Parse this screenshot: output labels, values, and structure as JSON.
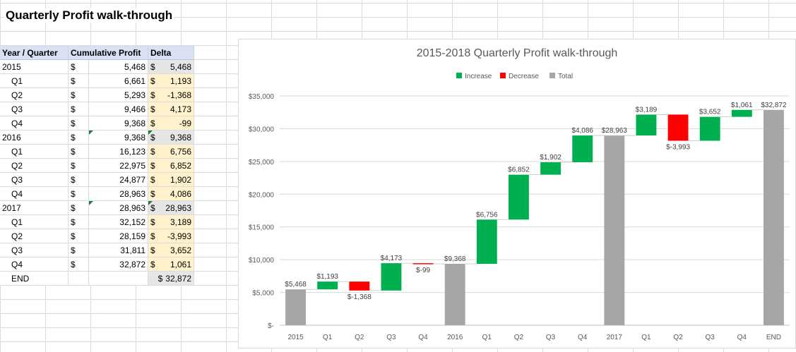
{
  "sheet": {
    "title": "Quarterly Profit walk-through",
    "headers": [
      "Year / Quarter",
      "Cumulative Profit",
      "Delta"
    ],
    "currency_symbol": "$",
    "rows": [
      {
        "label": "2015",
        "kind": "total",
        "cumulative": "5,468",
        "delta": "5,468"
      },
      {
        "label": "Q1",
        "kind": "step",
        "cumulative": "6,661",
        "delta": "1,193"
      },
      {
        "label": "Q2",
        "kind": "step",
        "cumulative": "5,293",
        "delta": "-1,368"
      },
      {
        "label": "Q3",
        "kind": "step",
        "cumulative": "9,466",
        "delta": "4,173"
      },
      {
        "label": "Q4",
        "kind": "step",
        "cumulative": "9,368",
        "delta": "-99"
      },
      {
        "label": "2016",
        "kind": "total",
        "cumulative": "9,368",
        "delta": "9,368"
      },
      {
        "label": "Q1",
        "kind": "step",
        "cumulative": "16,123",
        "delta": "6,756"
      },
      {
        "label": "Q2",
        "kind": "step",
        "cumulative": "22,975",
        "delta": "6,852"
      },
      {
        "label": "Q3",
        "kind": "step",
        "cumulative": "24,877",
        "delta": "1,902"
      },
      {
        "label": "Q4",
        "kind": "step",
        "cumulative": "28,963",
        "delta": "4,086"
      },
      {
        "label": "2017",
        "kind": "total",
        "cumulative": "28,963",
        "delta": "28,963"
      },
      {
        "label": "Q1",
        "kind": "step",
        "cumulative": "32,152",
        "delta": "3,189"
      },
      {
        "label": "Q2",
        "kind": "step",
        "cumulative": "28,159",
        "delta": "-3,993"
      },
      {
        "label": "Q3",
        "kind": "step",
        "cumulative": "31,811",
        "delta": "3,652"
      },
      {
        "label": "Q4",
        "kind": "step",
        "cumulative": "32,872",
        "delta": "1,061"
      },
      {
        "label": "END",
        "kind": "end",
        "cumulative": "",
        "delta": "32,872"
      }
    ],
    "colors": {
      "header_bg": "#d9e1f2",
      "total_bg": "#e7e6e6",
      "step_bg": "#fff2cc"
    }
  },
  "chart_data": {
    "type": "bar",
    "subtype": "waterfall",
    "title": "2015-2018 Quarterly Profit walk-through",
    "xlabel": "",
    "ylabel": "",
    "ylim": [
      0,
      35000
    ],
    "yticks": [
      0,
      5000,
      10000,
      15000,
      20000,
      25000,
      30000,
      35000
    ],
    "ytick_labels": [
      "$-",
      "$5,000",
      "$10,000",
      "$15,000",
      "$20,000",
      "$25,000",
      "$30,000",
      "$35,000"
    ],
    "grid": true,
    "legend": {
      "placement": "top-center",
      "entries": [
        "Increase",
        "Decrease",
        "Total"
      ]
    },
    "colors": {
      "Increase": "#00b050",
      "Decrease": "#ff0000",
      "Total": "#a6a6a6"
    },
    "categories": [
      "2015",
      "Q1",
      "Q2",
      "Q3",
      "Q4",
      "2016",
      "Q1",
      "Q2",
      "Q3",
      "Q4",
      "2017",
      "Q1",
      "Q2",
      "Q3",
      "Q4",
      "END"
    ],
    "values": [
      5468,
      1193,
      -1368,
      4173,
      -99,
      9368,
      6756,
      6852,
      1902,
      4086,
      28963,
      3189,
      -3993,
      3652,
      1061,
      32872
    ],
    "kinds": [
      "total",
      "increase",
      "decrease",
      "increase",
      "decrease",
      "total",
      "increase",
      "increase",
      "increase",
      "increase",
      "total",
      "increase",
      "decrease",
      "increase",
      "increase",
      "total"
    ],
    "data_labels": [
      "$5,468",
      "$1,193",
      "$-1,368",
      "$4,173",
      "$-99",
      "$9,368",
      "$6,756",
      "$6,852",
      "$1,902",
      "$4,086",
      "$28,963",
      "$3,189",
      "$-3,993",
      "$3,652",
      "$1,061",
      "$32,872"
    ]
  }
}
